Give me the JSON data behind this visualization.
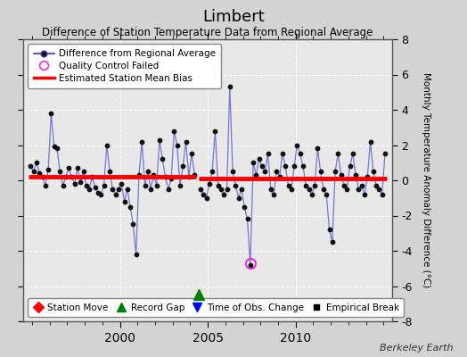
{
  "title": "Limbert",
  "subtitle": "Difference of Station Temperature Data from Regional Average",
  "ylabel_right": "Monthly Temperature Anomaly Difference (°C)",
  "credit": "Berkeley Earth",
  "xlim": [
    1994.5,
    2015.5
  ],
  "ylim": [
    -8,
    8
  ],
  "yticks": [
    -8,
    -6,
    -4,
    -2,
    0,
    2,
    4,
    6,
    8
  ],
  "background_color": "#d3d3d3",
  "plot_bg_color": "#e8e8e8",
  "grid_color": "#ffffff",
  "line_color": "#4444cc",
  "dot_color": "#111111",
  "bias_color": "#ff0000",
  "bias_lw": 3.5,
  "gap_x": 2004.5,
  "record_gap_x": 2004.5,
  "record_gap_y": -6.5,
  "qc_fail_x": 2007.42,
  "qc_fail_y": -4.7,
  "segment1_bias": 0.18,
  "segment2_bias": 0.08,
  "seg1_x_start": 1994.5,
  "seg1_x_end": 2004.4,
  "seg2_x_start": 2004.6,
  "seg2_x_end": 2015.5,
  "data": [
    [
      1994.917,
      0.8
    ],
    [
      1995.083,
      0.5
    ],
    [
      1995.25,
      1.0
    ],
    [
      1995.417,
      0.4
    ],
    [
      1995.583,
      0.2
    ],
    [
      1995.75,
      -0.3
    ],
    [
      1995.917,
      0.6
    ],
    [
      1996.083,
      3.8
    ],
    [
      1996.25,
      1.9
    ],
    [
      1996.417,
      1.8
    ],
    [
      1996.583,
      0.5
    ],
    [
      1996.75,
      -0.3
    ],
    [
      1996.917,
      0.2
    ],
    [
      1997.083,
      0.7
    ],
    [
      1997.25,
      0.2
    ],
    [
      1997.417,
      -0.2
    ],
    [
      1997.583,
      0.7
    ],
    [
      1997.75,
      -0.1
    ],
    [
      1997.917,
      0.5
    ],
    [
      1998.083,
      -0.3
    ],
    [
      1998.25,
      -0.5
    ],
    [
      1998.417,
      0.2
    ],
    [
      1998.583,
      -0.4
    ],
    [
      1998.75,
      -0.7
    ],
    [
      1998.917,
      -0.8
    ],
    [
      1999.083,
      -0.3
    ],
    [
      1999.25,
      2.0
    ],
    [
      1999.417,
      0.5
    ],
    [
      1999.583,
      -0.5
    ],
    [
      1999.75,
      -0.8
    ],
    [
      1999.917,
      -0.5
    ],
    [
      2000.083,
      -0.2
    ],
    [
      2000.25,
      -1.2
    ],
    [
      2000.417,
      -0.5
    ],
    [
      2000.583,
      -1.5
    ],
    [
      2000.75,
      -2.5
    ],
    [
      2000.917,
      -4.2
    ],
    [
      2001.083,
      0.3
    ],
    [
      2001.25,
      2.2
    ],
    [
      2001.417,
      -0.3
    ],
    [
      2001.583,
      0.5
    ],
    [
      2001.75,
      -0.5
    ],
    [
      2001.917,
      0.3
    ],
    [
      2002.083,
      -0.3
    ],
    [
      2002.25,
      2.3
    ],
    [
      2002.417,
      1.2
    ],
    [
      2002.583,
      0.2
    ],
    [
      2002.75,
      -0.5
    ],
    [
      2002.917,
      0.1
    ],
    [
      2003.083,
      2.8
    ],
    [
      2003.25,
      2.0
    ],
    [
      2003.417,
      -0.3
    ],
    [
      2003.583,
      0.8
    ],
    [
      2003.75,
      2.2
    ],
    [
      2003.917,
      0.2
    ],
    [
      2004.083,
      1.5
    ],
    [
      2004.25,
      0.3
    ],
    [
      2004.583,
      -0.5
    ],
    [
      2004.75,
      -0.8
    ],
    [
      2004.917,
      -1.0
    ],
    [
      2005.083,
      -0.2
    ],
    [
      2005.25,
      0.5
    ],
    [
      2005.417,
      2.8
    ],
    [
      2005.583,
      -0.3
    ],
    [
      2005.75,
      -0.5
    ],
    [
      2005.917,
      -0.8
    ],
    [
      2006.083,
      -0.5
    ],
    [
      2006.25,
      5.3
    ],
    [
      2006.417,
      0.5
    ],
    [
      2006.583,
      -0.3
    ],
    [
      2006.75,
      -1.0
    ],
    [
      2006.917,
      -0.5
    ],
    [
      2007.083,
      -1.5
    ],
    [
      2007.25,
      -2.2
    ],
    [
      2007.417,
      -4.8
    ],
    [
      2007.583,
      1.0
    ],
    [
      2007.75,
      0.3
    ],
    [
      2007.917,
      1.2
    ],
    [
      2008.083,
      0.8
    ],
    [
      2008.25,
      0.5
    ],
    [
      2008.417,
      1.5
    ],
    [
      2008.583,
      -0.5
    ],
    [
      2008.75,
      -0.8
    ],
    [
      2008.917,
      0.5
    ],
    [
      2009.083,
      0.2
    ],
    [
      2009.25,
      1.5
    ],
    [
      2009.417,
      0.8
    ],
    [
      2009.583,
      -0.3
    ],
    [
      2009.75,
      -0.5
    ],
    [
      2009.917,
      0.8
    ],
    [
      2010.083,
      2.0
    ],
    [
      2010.25,
      1.5
    ],
    [
      2010.417,
      0.8
    ],
    [
      2010.583,
      -0.3
    ],
    [
      2010.75,
      -0.5
    ],
    [
      2010.917,
      -0.8
    ],
    [
      2011.083,
      -0.3
    ],
    [
      2011.25,
      1.8
    ],
    [
      2011.417,
      0.5
    ],
    [
      2011.583,
      -0.5
    ],
    [
      2011.75,
      -0.8
    ],
    [
      2011.917,
      -2.8
    ],
    [
      2012.083,
      -3.5
    ],
    [
      2012.25,
      0.5
    ],
    [
      2012.417,
      1.5
    ],
    [
      2012.583,
      0.3
    ],
    [
      2012.75,
      -0.3
    ],
    [
      2012.917,
      -0.5
    ],
    [
      2013.083,
      0.8
    ],
    [
      2013.25,
      1.5
    ],
    [
      2013.417,
      0.3
    ],
    [
      2013.583,
      -0.5
    ],
    [
      2013.75,
      -0.3
    ],
    [
      2013.917,
      -0.8
    ],
    [
      2014.083,
      0.2
    ],
    [
      2014.25,
      2.2
    ],
    [
      2014.417,
      0.5
    ],
    [
      2014.583,
      -0.3
    ],
    [
      2014.75,
      -0.5
    ],
    [
      2014.917,
      -0.8
    ],
    [
      2015.083,
      1.5
    ]
  ]
}
